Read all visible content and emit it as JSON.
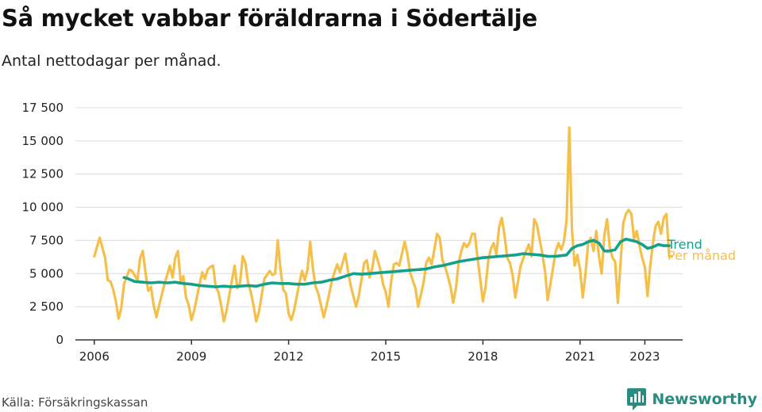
{
  "header": {
    "title": "Så mycket vabbar föräldrarna i Södertälje",
    "subtitle": "Antal nettodagar per månad."
  },
  "footer": {
    "source": "Källa: Försäkringskassan",
    "brand": "Newsworthy",
    "brand_icon": "bar-chart-logo-icon",
    "brand_color": "#2a8c80"
  },
  "chart_data": {
    "type": "line",
    "ylim": [
      0,
      17500
    ],
    "yticks": [
      0,
      2500,
      5000,
      7500,
      10000,
      12500,
      15000,
      17500
    ],
    "ytick_labels": [
      "0",
      "2 500",
      "5 000",
      "7 500",
      "10 000",
      "12 500",
      "15 000",
      "17 500"
    ],
    "xlim": [
      "2005-06",
      "2024-03"
    ],
    "xticks": [
      "2006-01",
      "2009-01",
      "2012-01",
      "2015-01",
      "2018-01",
      "2021-01",
      "2023-01"
    ],
    "xtick_labels": [
      "2006",
      "2009",
      "2012",
      "2015",
      "2018",
      "2021",
      "2023"
    ],
    "grid": true,
    "legend": "right-end labels",
    "series": [
      {
        "name": "Per månad",
        "color": "#f5c04a",
        "points": [
          [
            "2006-01",
            6300
          ],
          [
            "2006-03",
            7700
          ],
          [
            "2006-05",
            6200
          ],
          [
            "2006-06",
            4500
          ],
          [
            "2006-07",
            4400
          ],
          [
            "2006-08",
            3800
          ],
          [
            "2006-09",
            2900
          ],
          [
            "2006-10",
            1600
          ],
          [
            "2006-11",
            2400
          ],
          [
            "2006-12",
            4200
          ],
          [
            "2007-02",
            5300
          ],
          [
            "2007-03",
            5200
          ],
          [
            "2007-05",
            4500
          ],
          [
            "2007-06",
            6200
          ],
          [
            "2007-07",
            6700
          ],
          [
            "2007-08",
            5000
          ],
          [
            "2007-09",
            3700
          ],
          [
            "2007-10",
            4000
          ],
          [
            "2007-11",
            2600
          ],
          [
            "2007-12",
            1700
          ],
          [
            "2008-01",
            2600
          ],
          [
            "2008-03",
            4200
          ],
          [
            "2008-05",
            5600
          ],
          [
            "2008-06",
            4700
          ],
          [
            "2008-07",
            6200
          ],
          [
            "2008-08",
            6700
          ],
          [
            "2008-09",
            4400
          ],
          [
            "2008-10",
            4800
          ],
          [
            "2008-11",
            3200
          ],
          [
            "2008-12",
            2600
          ],
          [
            "2009-01",
            1500
          ],
          [
            "2009-02",
            2200
          ],
          [
            "2009-04",
            4200
          ],
          [
            "2009-05",
            5100
          ],
          [
            "2009-06",
            4600
          ],
          [
            "2009-07",
            5300
          ],
          [
            "2009-08",
            5500
          ],
          [
            "2009-09",
            5600
          ],
          [
            "2009-10",
            4000
          ],
          [
            "2009-11",
            3600
          ],
          [
            "2009-12",
            2600
          ],
          [
            "2010-01",
            1400
          ],
          [
            "2010-02",
            2200
          ],
          [
            "2010-04",
            4500
          ],
          [
            "2010-05",
            5600
          ],
          [
            "2010-06",
            3900
          ],
          [
            "2010-07",
            4300
          ],
          [
            "2010-08",
            6300
          ],
          [
            "2010-09",
            5800
          ],
          [
            "2010-10",
            4300
          ],
          [
            "2010-11",
            3600
          ],
          [
            "2010-12",
            2600
          ],
          [
            "2011-01",
            1400
          ],
          [
            "2011-02",
            2100
          ],
          [
            "2011-04",
            4600
          ],
          [
            "2011-06",
            5200
          ],
          [
            "2011-07",
            4900
          ],
          [
            "2011-08",
            5000
          ],
          [
            "2011-09",
            7500
          ],
          [
            "2011-10",
            5300
          ],
          [
            "2011-11",
            3800
          ],
          [
            "2011-12",
            3500
          ],
          [
            "2012-01",
            2000
          ],
          [
            "2012-02",
            1500
          ],
          [
            "2012-03",
            2200
          ],
          [
            "2012-05",
            4300
          ],
          [
            "2012-06",
            5200
          ],
          [
            "2012-07",
            4500
          ],
          [
            "2012-08",
            5300
          ],
          [
            "2012-09",
            7400
          ],
          [
            "2012-10",
            5400
          ],
          [
            "2012-11",
            4000
          ],
          [
            "2012-12",
            3500
          ],
          [
            "2013-02",
            1700
          ],
          [
            "2013-03",
            2500
          ],
          [
            "2013-05",
            4400
          ],
          [
            "2013-06",
            5100
          ],
          [
            "2013-07",
            5700
          ],
          [
            "2013-08",
            5100
          ],
          [
            "2013-10",
            6500
          ],
          [
            "2013-11",
            5200
          ],
          [
            "2013-12",
            4100
          ],
          [
            "2014-02",
            2500
          ],
          [
            "2014-03",
            3300
          ],
          [
            "2014-05",
            5800
          ],
          [
            "2014-06",
            6000
          ],
          [
            "2014-07",
            4700
          ],
          [
            "2014-08",
            5400
          ],
          [
            "2014-09",
            6700
          ],
          [
            "2014-10",
            6000
          ],
          [
            "2014-11",
            5300
          ],
          [
            "2014-12",
            4200
          ],
          [
            "2015-01",
            3600
          ],
          [
            "2015-02",
            2500
          ],
          [
            "2015-03",
            4400
          ],
          [
            "2015-04",
            5700
          ],
          [
            "2015-05",
            5800
          ],
          [
            "2015-06",
            5600
          ],
          [
            "2015-08",
            7400
          ],
          [
            "2015-09",
            6500
          ],
          [
            "2015-10",
            5100
          ],
          [
            "2015-11",
            4500
          ],
          [
            "2015-12",
            3900
          ],
          [
            "2016-01",
            2500
          ],
          [
            "2016-03",
            4300
          ],
          [
            "2016-04",
            5800
          ],
          [
            "2016-05",
            6200
          ],
          [
            "2016-06",
            5700
          ],
          [
            "2016-07",
            6800
          ],
          [
            "2016-08",
            8000
          ],
          [
            "2016-09",
            7700
          ],
          [
            "2016-10",
            6000
          ],
          [
            "2016-11",
            5500
          ],
          [
            "2016-12",
            4800
          ],
          [
            "2017-01",
            4000
          ],
          [
            "2017-02",
            2800
          ],
          [
            "2017-03",
            3900
          ],
          [
            "2017-04",
            5800
          ],
          [
            "2017-05",
            6700
          ],
          [
            "2017-06",
            7300
          ],
          [
            "2017-07",
            7000
          ],
          [
            "2017-08",
            7300
          ],
          [
            "2017-09",
            8000
          ],
          [
            "2017-10",
            8000
          ],
          [
            "2017-11",
            6200
          ],
          [
            "2017-12",
            4600
          ],
          [
            "2018-01",
            2900
          ],
          [
            "2018-02",
            4000
          ],
          [
            "2018-03",
            6000
          ],
          [
            "2018-04",
            6900
          ],
          [
            "2018-05",
            7300
          ],
          [
            "2018-06",
            6400
          ],
          [
            "2018-07",
            8500
          ],
          [
            "2018-08",
            9200
          ],
          [
            "2018-09",
            7900
          ],
          [
            "2018-10",
            6200
          ],
          [
            "2018-11",
            5800
          ],
          [
            "2018-12",
            4900
          ],
          [
            "2019-01",
            3200
          ],
          [
            "2019-02",
            4400
          ],
          [
            "2019-03",
            5600
          ],
          [
            "2019-05",
            6700
          ],
          [
            "2019-06",
            7200
          ],
          [
            "2019-07",
            6300
          ],
          [
            "2019-08",
            9100
          ],
          [
            "2019-09",
            8700
          ],
          [
            "2019-10",
            7600
          ],
          [
            "2019-11",
            6500
          ],
          [
            "2019-12",
            5200
          ],
          [
            "2020-01",
            3000
          ],
          [
            "2020-02",
            4200
          ],
          [
            "2020-04",
            6700
          ],
          [
            "2020-05",
            7300
          ],
          [
            "2020-06",
            6800
          ],
          [
            "2020-07",
            7400
          ],
          [
            "2020-08",
            9000
          ],
          [
            "2020-09",
            16000
          ],
          [
            "2020-10",
            8300
          ],
          [
            "2020-11",
            5600
          ],
          [
            "2020-12",
            6400
          ],
          [
            "2021-01",
            5300
          ],
          [
            "2021-02",
            3200
          ],
          [
            "2021-03",
            5000
          ],
          [
            "2021-04",
            7300
          ],
          [
            "2021-05",
            7700
          ],
          [
            "2021-06",
            6700
          ],
          [
            "2021-07",
            8200
          ],
          [
            "2021-08",
            6300
          ],
          [
            "2021-09",
            5000
          ],
          [
            "2021-10",
            7900
          ],
          [
            "2021-11",
            9100
          ],
          [
            "2021-12",
            7000
          ],
          [
            "2022-01",
            6200
          ],
          [
            "2022-02",
            5900
          ],
          [
            "2022-03",
            2800
          ],
          [
            "2022-04",
            5800
          ],
          [
            "2022-05",
            8800
          ],
          [
            "2022-06",
            9500
          ],
          [
            "2022-07",
            9800
          ],
          [
            "2022-08",
            9500
          ],
          [
            "2022-09",
            7600
          ],
          [
            "2022-10",
            8200
          ],
          [
            "2022-11",
            7100
          ],
          [
            "2022-12",
            6200
          ],
          [
            "2023-01",
            5500
          ],
          [
            "2023-02",
            3300
          ],
          [
            "2023-03",
            5600
          ],
          [
            "2023-04",
            7300
          ],
          [
            "2023-05",
            8600
          ],
          [
            "2023-06",
            8900
          ],
          [
            "2023-07",
            8000
          ],
          [
            "2023-08",
            9200
          ],
          [
            "2023-09",
            9500
          ],
          [
            "2023-10",
            6300
          ],
          [
            "2023-11",
            6300
          ]
        ]
      },
      {
        "name": "Trend",
        "color": "#14a08a",
        "points": [
          [
            "2006-12",
            4700
          ],
          [
            "2007-01",
            4650
          ],
          [
            "2007-04",
            4400
          ],
          [
            "2007-07",
            4350
          ],
          [
            "2007-10",
            4300
          ],
          [
            "2008-01",
            4350
          ],
          [
            "2008-04",
            4300
          ],
          [
            "2008-07",
            4350
          ],
          [
            "2008-10",
            4250
          ],
          [
            "2009-01",
            4200
          ],
          [
            "2009-04",
            4100
          ],
          [
            "2009-07",
            4050
          ],
          [
            "2009-10",
            4000
          ],
          [
            "2010-01",
            4050
          ],
          [
            "2010-04",
            4000
          ],
          [
            "2010-07",
            4050
          ],
          [
            "2010-10",
            4100
          ],
          [
            "2011-01",
            4050
          ],
          [
            "2011-04",
            4200
          ],
          [
            "2011-07",
            4300
          ],
          [
            "2011-10",
            4250
          ],
          [
            "2012-01",
            4250
          ],
          [
            "2012-04",
            4200
          ],
          [
            "2012-07",
            4200
          ],
          [
            "2012-10",
            4300
          ],
          [
            "2013-01",
            4350
          ],
          [
            "2013-04",
            4500
          ],
          [
            "2013-07",
            4600
          ],
          [
            "2013-10",
            4800
          ],
          [
            "2014-01",
            5000
          ],
          [
            "2014-04",
            4950
          ],
          [
            "2014-07",
            5000
          ],
          [
            "2014-10",
            5050
          ],
          [
            "2015-01",
            5100
          ],
          [
            "2015-04",
            5150
          ],
          [
            "2015-07",
            5200
          ],
          [
            "2015-10",
            5250
          ],
          [
            "2016-01",
            5300
          ],
          [
            "2016-04",
            5350
          ],
          [
            "2016-07",
            5500
          ],
          [
            "2016-10",
            5600
          ],
          [
            "2017-01",
            5750
          ],
          [
            "2017-04",
            5900
          ],
          [
            "2017-07",
            6000
          ],
          [
            "2017-10",
            6100
          ],
          [
            "2018-01",
            6200
          ],
          [
            "2018-04",
            6250
          ],
          [
            "2018-07",
            6300
          ],
          [
            "2018-10",
            6350
          ],
          [
            "2019-01",
            6400
          ],
          [
            "2019-04",
            6500
          ],
          [
            "2019-07",
            6450
          ],
          [
            "2019-10",
            6400
          ],
          [
            "2020-01",
            6300
          ],
          [
            "2020-04",
            6300
          ],
          [
            "2020-06",
            6350
          ],
          [
            "2020-08",
            6400
          ],
          [
            "2020-10",
            6900
          ],
          [
            "2020-12",
            7100
          ],
          [
            "2021-02",
            7200
          ],
          [
            "2021-04",
            7400
          ],
          [
            "2021-06",
            7500
          ],
          [
            "2021-08",
            7300
          ],
          [
            "2021-10",
            6700
          ],
          [
            "2021-12",
            6700
          ],
          [
            "2022-02",
            6800
          ],
          [
            "2022-04",
            7400
          ],
          [
            "2022-06",
            7600
          ],
          [
            "2022-08",
            7500
          ],
          [
            "2022-10",
            7400
          ],
          [
            "2022-12",
            7200
          ],
          [
            "2023-02",
            6900
          ],
          [
            "2023-04",
            7000
          ],
          [
            "2023-06",
            7200
          ],
          [
            "2023-08",
            7100
          ],
          [
            "2023-10",
            7100
          ]
        ]
      }
    ]
  }
}
